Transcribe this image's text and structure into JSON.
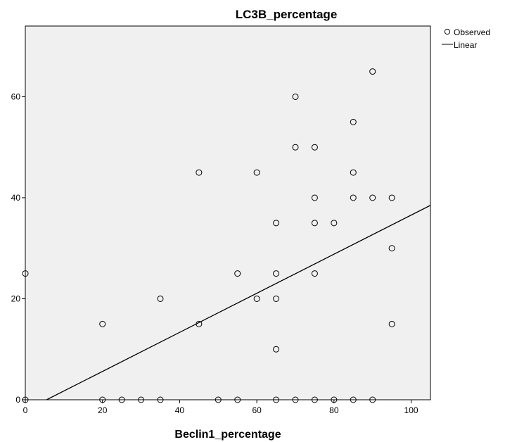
{
  "chart_data": {
    "type": "scatter",
    "title": "LC3B_percentage",
    "xlabel": "Beclin1_percentage",
    "ylabel": "",
    "xlim": [
      0,
      105
    ],
    "ylim": [
      0,
      74
    ],
    "x_ticks": [
      0,
      20,
      40,
      60,
      80,
      100
    ],
    "y_ticks": [
      0,
      20,
      40,
      60
    ],
    "grid": false,
    "legend_position": "top-right",
    "legend": [
      {
        "label": "Observed",
        "marker": "circle"
      },
      {
        "label": "Linear",
        "marker": "line"
      }
    ],
    "series": [
      {
        "name": "Observed",
        "points": [
          [
            0,
            25
          ],
          [
            0,
            0
          ],
          [
            20,
            15
          ],
          [
            20,
            0
          ],
          [
            25,
            0
          ],
          [
            30,
            0
          ],
          [
            35,
            20
          ],
          [
            35,
            0
          ],
          [
            45,
            45
          ],
          [
            45,
            15
          ],
          [
            50,
            0
          ],
          [
            55,
            25
          ],
          [
            55,
            0
          ],
          [
            60,
            45
          ],
          [
            60,
            20
          ],
          [
            65,
            35
          ],
          [
            65,
            25
          ],
          [
            65,
            20
          ],
          [
            65,
            10
          ],
          [
            65,
            0
          ],
          [
            70,
            60
          ],
          [
            70,
            50
          ],
          [
            70,
            0
          ],
          [
            75,
            50
          ],
          [
            75,
            40
          ],
          [
            75,
            35
          ],
          [
            75,
            25
          ],
          [
            75,
            0
          ],
          [
            80,
            35
          ],
          [
            80,
            0
          ],
          [
            85,
            55
          ],
          [
            85,
            45
          ],
          [
            85,
            40
          ],
          [
            85,
            0
          ],
          [
            90,
            65
          ],
          [
            90,
            40
          ],
          [
            90,
            0
          ],
          [
            95,
            40
          ],
          [
            95,
            30
          ],
          [
            95,
            15
          ]
        ]
      },
      {
        "name": "Linear",
        "line": [
          [
            5.5,
            0
          ],
          [
            105,
            38.5
          ]
        ]
      }
    ],
    "colors": {
      "plot_background": "#f0f0f0",
      "marker_stroke": "#000000",
      "line": "#000000"
    }
  }
}
